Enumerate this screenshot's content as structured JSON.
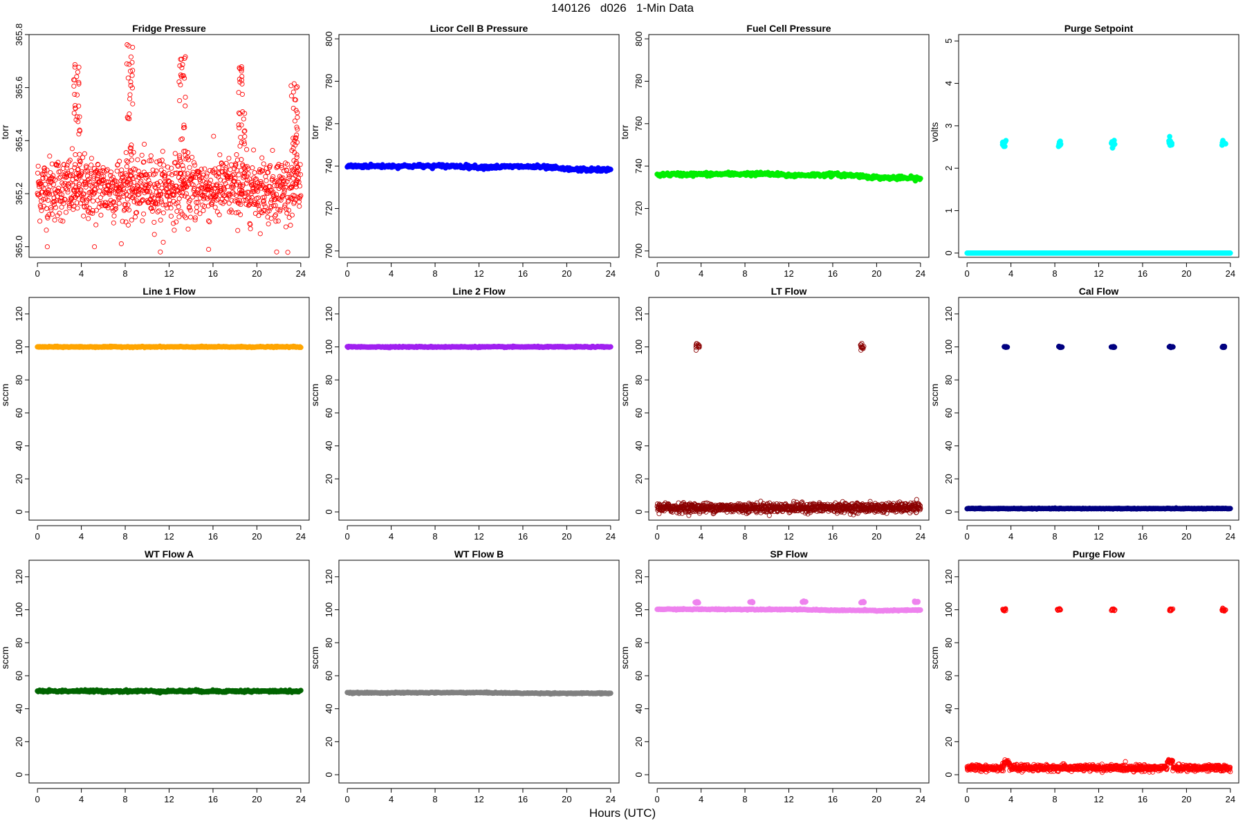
{
  "page": {
    "title": "140126   d026   1-Min Data",
    "xlabel": "Hours (UTC)"
  },
  "chart_data": [
    {
      "type": "scatter",
      "title": "Fridge Pressure",
      "ylabel": "torr",
      "ylim": [
        364.96,
        365.8
      ],
      "yticks": [
        "365.0",
        "365.2",
        "365.4",
        "365.6",
        "365.8"
      ],
      "xlim": [
        0,
        24
      ],
      "xticks": [
        0,
        4,
        8,
        12,
        16,
        20,
        24
      ],
      "color": "#ff0000",
      "marker": "open-circle",
      "series": [
        {
          "noise": 0.06,
          "base": [
            [
              0,
              365.22
            ],
            [
              24,
              365.22
            ]
          ],
          "spikes": [
            [
              3.6,
              365.7
            ],
            [
              8.4,
              365.77
            ],
            [
              13.2,
              365.72
            ],
            [
              18.6,
              365.68
            ],
            [
              23.4,
              365.65
            ]
          ],
          "outliers": [
            [
              11.2,
              364.98
            ],
            [
              14.4,
              364.95
            ],
            [
              15.6,
              364.99
            ],
            [
              21.8,
              364.98
            ],
            [
              0.9,
              365.0
            ],
            [
              5.2,
              365.0
            ]
          ]
        }
      ]
    },
    {
      "type": "scatter",
      "title": "Licor Cell B Pressure",
      "ylabel": "torr",
      "ylim": [
        697,
        802
      ],
      "yticks": [
        700,
        720,
        740,
        760,
        780,
        800
      ],
      "xlim": [
        0,
        24
      ],
      "xticks": [
        0,
        4,
        8,
        12,
        16,
        20,
        24
      ],
      "color": "#0000ff",
      "marker": "filled-circle",
      "series": [
        {
          "noise": 0.4,
          "base": [
            [
              0,
              740
            ],
            [
              6,
              740
            ],
            [
              10,
              740
            ],
            [
              12,
              739.5
            ],
            [
              16,
              739.8
            ],
            [
              18,
              739.5
            ],
            [
              20,
              738.5
            ],
            [
              24,
              738.2
            ]
          ]
        }
      ]
    },
    {
      "type": "scatter",
      "title": "Fuel Cell Pressure",
      "ylabel": "torr",
      "ylim": [
        697,
        802
      ],
      "yticks": [
        700,
        720,
        740,
        760,
        780,
        800
      ],
      "xlim": [
        0,
        24
      ],
      "xticks": [
        0,
        4,
        8,
        12,
        16,
        20,
        24
      ],
      "color": "#00ee00",
      "marker": "filled-circle",
      "series": [
        {
          "noise": 0.4,
          "base": [
            [
              0,
              736
            ],
            [
              8,
              736.3
            ],
            [
              10,
              736.3
            ],
            [
              12,
              735.6
            ],
            [
              16,
              736
            ],
            [
              18,
              735.6
            ],
            [
              20,
              734.6
            ],
            [
              24,
              734.2
            ]
          ]
        }
      ]
    },
    {
      "type": "scatter",
      "title": "Purge Setpoint",
      "ylabel": "volts",
      "ylim": [
        -0.1,
        5.15
      ],
      "yticks": [
        0,
        1,
        2,
        3,
        4,
        5
      ],
      "xlim": [
        0,
        24
      ],
      "xticks": [
        0,
        4,
        8,
        12,
        16,
        20,
        24
      ],
      "color": "#00ffff",
      "marker": "filled-circle",
      "series": [
        {
          "noise": 0.0,
          "base": [
            [
              0,
              0
            ],
            [
              24,
              0
            ]
          ],
          "clusters": [
            [
              3.4,
              2.58
            ],
            [
              8.4,
              2.58
            ],
            [
              13.3,
              2.58
            ],
            [
              18.5,
              2.58
            ],
            [
              23.4,
              2.58
            ]
          ],
          "cluster_spread": 0.05
        }
      ]
    },
    {
      "type": "scatter",
      "title": "Line 1 Flow",
      "ylabel": "sccm",
      "ylim": [
        -5,
        130
      ],
      "yticks": [
        0,
        20,
        40,
        60,
        80,
        100,
        120
      ],
      "xlim": [
        0,
        24
      ],
      "xticks": [
        0,
        4,
        8,
        12,
        16,
        20,
        24
      ],
      "color": "#ffa500",
      "marker": "filled-circle",
      "series": [
        {
          "noise": 0.15,
          "base": [
            [
              0,
              100
            ],
            [
              24,
              100
            ]
          ]
        }
      ]
    },
    {
      "type": "scatter",
      "title": "Line 2 Flow",
      "ylabel": "sccm",
      "ylim": [
        -5,
        130
      ],
      "yticks": [
        0,
        20,
        40,
        60,
        80,
        100,
        120
      ],
      "xlim": [
        0,
        24
      ],
      "xticks": [
        0,
        4,
        8,
        12,
        16,
        20,
        24
      ],
      "color": "#a020f0",
      "marker": "filled-circle",
      "series": [
        {
          "noise": 0.15,
          "base": [
            [
              0,
              100
            ],
            [
              24,
              100
            ]
          ]
        }
      ]
    },
    {
      "type": "scatter",
      "title": "LT Flow",
      "ylabel": "sccm",
      "ylim": [
        -5,
        130
      ],
      "yticks": [
        0,
        20,
        40,
        60,
        80,
        100,
        120
      ],
      "xlim": [
        0,
        24
      ],
      "xticks": [
        0,
        4,
        8,
        12,
        16,
        20,
        24
      ],
      "color": "#8b0000",
      "marker": "open-circle",
      "series": [
        {
          "noise": 1.4,
          "base": [
            [
              0,
              2.5
            ],
            [
              24,
              2.5
            ]
          ],
          "clusters": [
            [
              3.7,
              100.5
            ],
            [
              18.7,
              100
            ]
          ],
          "cluster_spread": 1.2
        }
      ]
    },
    {
      "type": "scatter",
      "title": "Cal Flow",
      "ylabel": "sccm",
      "ylim": [
        -5,
        130
      ],
      "yticks": [
        0,
        20,
        40,
        60,
        80,
        100,
        120
      ],
      "xlim": [
        0,
        24
      ],
      "xticks": [
        0,
        4,
        8,
        12,
        16,
        20,
        24
      ],
      "color": "#000080",
      "marker": "filled-circle",
      "series": [
        {
          "noise": 0.1,
          "base": [
            [
              0,
              2
            ],
            [
              24,
              2
            ]
          ],
          "clusters": [
            [
              3.5,
              100
            ],
            [
              8.5,
              100
            ],
            [
              13.3,
              100
            ],
            [
              18.6,
              100
            ],
            [
              23.4,
              100
            ]
          ],
          "cluster_spread": 0.15
        }
      ]
    },
    {
      "type": "scatter",
      "title": "WT Flow A",
      "ylabel": "sccm",
      "ylim": [
        -5,
        130
      ],
      "yticks": [
        0,
        20,
        40,
        60,
        80,
        100,
        120
      ],
      "xlim": [
        0,
        24
      ],
      "xticks": [
        0,
        4,
        8,
        12,
        16,
        20,
        24
      ],
      "color": "#006400",
      "marker": "filled-circle",
      "series": [
        {
          "noise": 0.35,
          "base": [
            [
              0,
              50.7
            ],
            [
              24,
              50.6
            ]
          ]
        }
      ]
    },
    {
      "type": "scatter",
      "title": "WT Flow B",
      "ylabel": "sccm",
      "ylim": [
        -5,
        130
      ],
      "yticks": [
        0,
        20,
        40,
        60,
        80,
        100,
        120
      ],
      "xlim": [
        0,
        24
      ],
      "xticks": [
        0,
        4,
        8,
        12,
        16,
        20,
        24
      ],
      "color": "#808080",
      "marker": "filled-circle",
      "series": [
        {
          "noise": 0.15,
          "base": [
            [
              0,
              49.6
            ],
            [
              12,
              49.8
            ],
            [
              16,
              49.4
            ],
            [
              24,
              49.3
            ]
          ]
        }
      ]
    },
    {
      "type": "scatter",
      "title": "SP Flow",
      "ylabel": "sccm",
      "ylim": [
        -5,
        130
      ],
      "yticks": [
        0,
        20,
        40,
        60,
        80,
        100,
        120
      ],
      "xlim": [
        0,
        24
      ],
      "xticks": [
        0,
        4,
        8,
        12,
        16,
        20,
        24
      ],
      "color": "#ee82ee",
      "marker": "filled-circle",
      "series": [
        {
          "noise": 0.15,
          "base": [
            [
              0,
              100.3
            ],
            [
              12,
              100.2
            ],
            [
              16,
              99.7
            ],
            [
              18,
              99.6
            ],
            [
              19,
              99.6
            ],
            [
              20,
              99.4
            ],
            [
              24,
              99.8
            ]
          ],
          "clusters": [
            [
              3.6,
              104.5
            ],
            [
              8.6,
              104.8
            ],
            [
              13.4,
              104.8
            ],
            [
              18.7,
              104.6
            ],
            [
              23.6,
              104.8
            ]
          ],
          "cluster_spread": 0.2
        }
      ]
    },
    {
      "type": "scatter",
      "title": "Purge Flow",
      "ylabel": "sccm",
      "ylim": [
        -5,
        130
      ],
      "yticks": [
        0,
        20,
        40,
        60,
        80,
        100,
        120
      ],
      "xlim": [
        0,
        24
      ],
      "xticks": [
        0,
        4,
        8,
        12,
        16,
        20,
        24
      ],
      "color": "#ff0000",
      "marker": "open-circle",
      "series": [
        {
          "noise": 0.9,
          "base": [
            [
              0,
              4.2
            ],
            [
              24,
              4
            ]
          ],
          "clusters": [
            [
              3.4,
              100
            ],
            [
              8.4,
              100
            ],
            [
              13.3,
              100
            ],
            [
              18.6,
              100
            ],
            [
              23.4,
              100
            ]
          ],
          "cluster_spread": 0.4,
          "bumps": [
            [
              3.6,
              7.5
            ],
            [
              18.5,
              8
            ]
          ]
        }
      ]
    }
  ]
}
